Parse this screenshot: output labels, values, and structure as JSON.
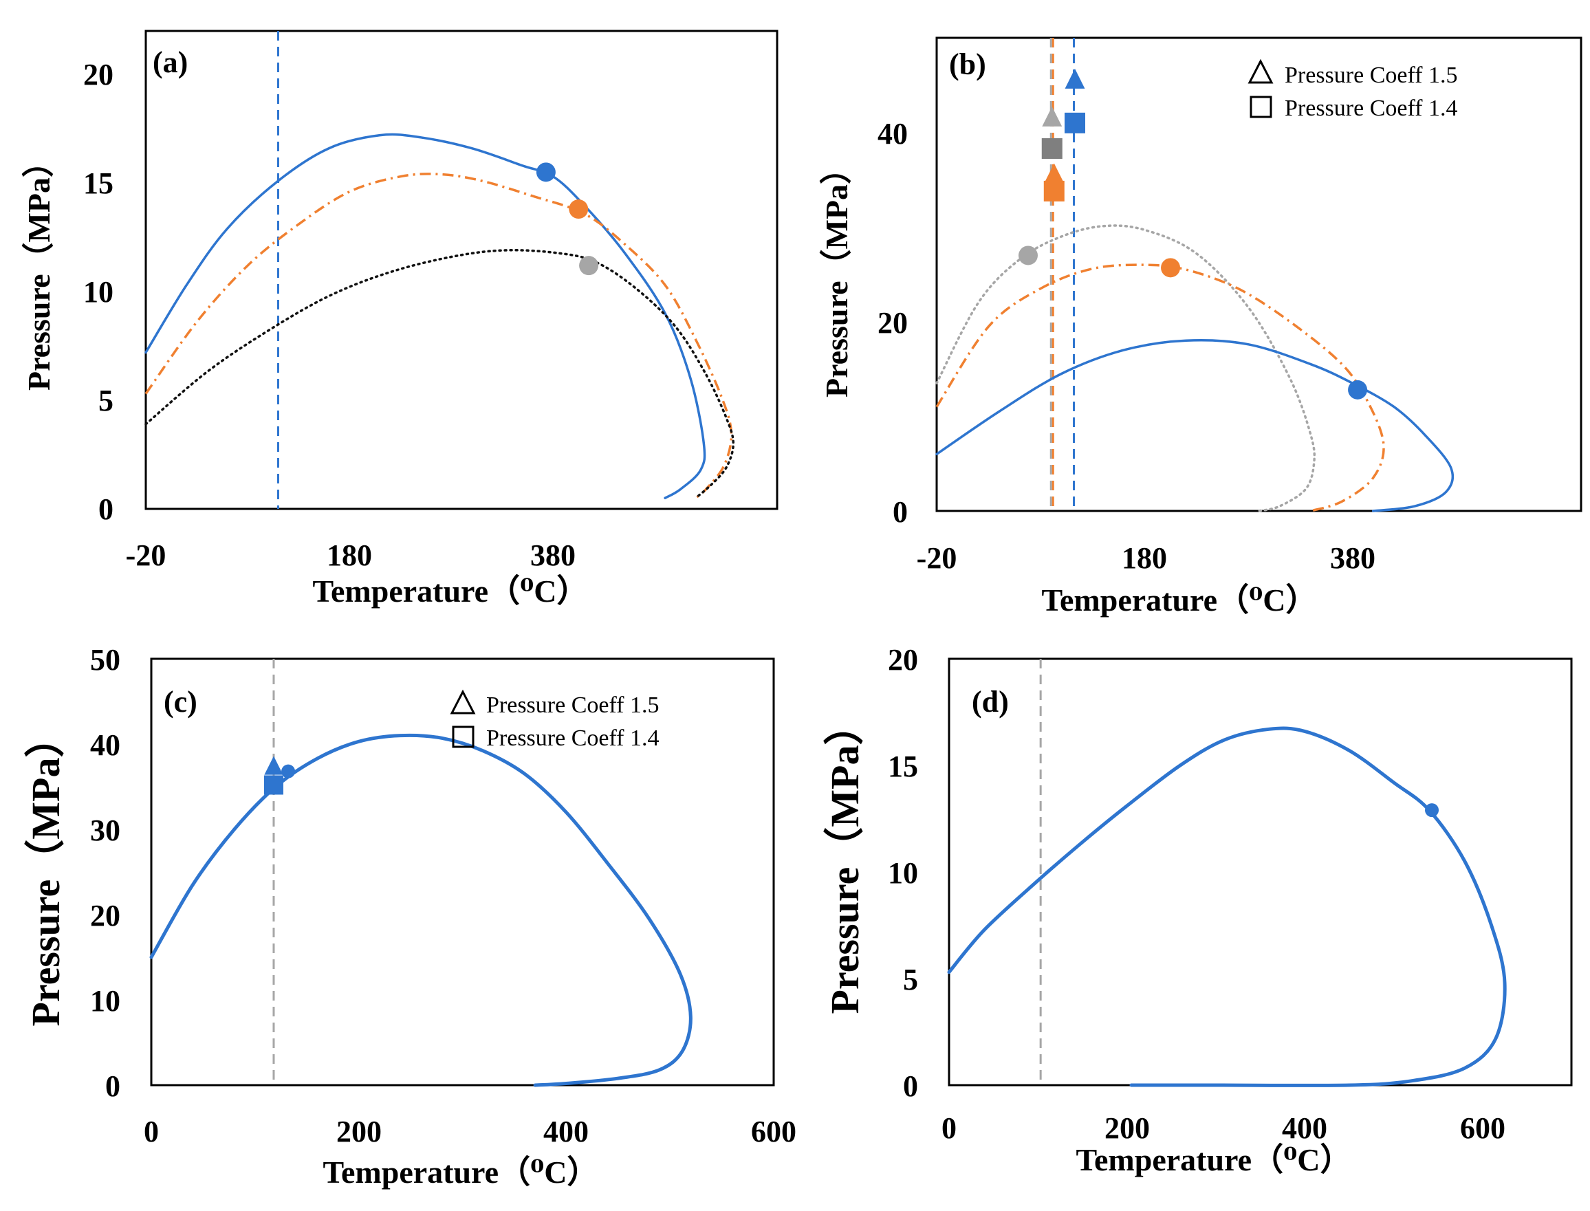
{
  "colors": {
    "blue": "#2E75CF",
    "orange": "#F08030",
    "gray": "#A6A6A6",
    "black": "#111111",
    "darkgray": "#7F7F7F"
  },
  "chart_data": [
    {
      "id": "a",
      "type": "line",
      "label": "(a)",
      "xlabel": "Temperature（⁰C）",
      "ylabel": "Pressure（MPa）",
      "xlim": [
        -20,
        600
      ],
      "ylim": [
        0,
        22
      ],
      "xticks": [
        "-20",
        "180",
        "380"
      ],
      "yticks": [
        "0",
        "5",
        "10",
        "15",
        "20"
      ],
      "vlines": [
        {
          "x": 110,
          "color": "blue"
        }
      ],
      "series": [
        {
          "name": "blue solid",
          "color": "blue",
          "style": "solid",
          "points": [
            [
              -20,
              7.2
            ],
            [
              20,
              10.3
            ],
            [
              60,
              12.9
            ],
            [
              110,
              15.1
            ],
            [
              160,
              16.6
            ],
            [
              210,
              17.2
            ],
            [
              250,
              17.1
            ],
            [
              300,
              16.6
            ],
            [
              350,
              15.8
            ],
            [
              380,
              15.3
            ],
            [
              410,
              14.0
            ],
            [
              450,
              11.8
            ],
            [
              490,
              9.0
            ],
            [
              515,
              6.0
            ],
            [
              528,
              3.0
            ],
            [
              525,
              1.8
            ],
            [
              505,
              0.9
            ],
            [
              490,
              0.5
            ]
          ]
        },
        {
          "name": "orange dash-dot",
          "color": "orange",
          "style": "dashdot",
          "points": [
            [
              -20,
              5.3
            ],
            [
              30,
              8.6
            ],
            [
              80,
              11.2
            ],
            [
              130,
              13.1
            ],
            [
              180,
              14.6
            ],
            [
              230,
              15.3
            ],
            [
              270,
              15.4
            ],
            [
              310,
              15.1
            ],
            [
              360,
              14.4
            ],
            [
              410,
              13.6
            ],
            [
              450,
              12.2
            ],
            [
              490,
              10.3
            ],
            [
              520,
              7.8
            ],
            [
              545,
              5.2
            ],
            [
              555,
              3.5
            ],
            [
              548,
              2.0
            ],
            [
              530,
              0.9
            ],
            [
              520,
              0.5
            ]
          ]
        },
        {
          "name": "black dotted",
          "color": "black",
          "style": "dotted",
          "points": [
            [
              -20,
              3.9
            ],
            [
              40,
              6.3
            ],
            [
              100,
              8.2
            ],
            [
              160,
              9.8
            ],
            [
              220,
              10.9
            ],
            [
              280,
              11.6
            ],
            [
              330,
              11.9
            ],
            [
              380,
              11.8
            ],
            [
              420,
              11.4
            ],
            [
              460,
              10.2
            ],
            [
              500,
              8.4
            ],
            [
              530,
              6.2
            ],
            [
              550,
              4.2
            ],
            [
              557,
              3.0
            ],
            [
              550,
              1.9
            ],
            [
              535,
              1.1
            ],
            [
              520,
              0.5
            ]
          ]
        }
      ],
      "markers": [
        {
          "x": 373,
          "y": 15.5,
          "shape": "circle",
          "color": "blue",
          "size": 14
        },
        {
          "x": 405,
          "y": 13.8,
          "shape": "circle",
          "color": "orange",
          "size": 14
        },
        {
          "x": 415,
          "y": 11.2,
          "shape": "circle",
          "color": "gray",
          "size": 14
        }
      ]
    },
    {
      "id": "b",
      "type": "line",
      "label": "(b)",
      "xlabel": "Temperature（⁰C）",
      "ylabel": "Pressure（MPa）",
      "xlim": [
        -20,
        600
      ],
      "ylim": [
        0,
        50
      ],
      "xticks": [
        "-20",
        "180",
        "380"
      ],
      "yticks": [
        "0",
        "20",
        "40"
      ],
      "vlines": [
        {
          "x": 90,
          "color": "gray"
        },
        {
          "x": 92,
          "color": "orange"
        },
        {
          "x": 112,
          "color": "blue"
        }
      ],
      "legend": [
        {
          "shape": "triangle",
          "text": "Pressure Coeff 1.5"
        },
        {
          "shape": "square",
          "text": "Pressure Coeff 1.4"
        }
      ],
      "series": [
        {
          "name": "gray dotted",
          "color": "gray",
          "style": "dotted",
          "points": [
            [
              -20,
              13.5
            ],
            [
              20,
              22.0
            ],
            [
              60,
              26.6
            ],
            [
              100,
              29.0
            ],
            [
              140,
              30.1
            ],
            [
              180,
              29.7
            ],
            [
              230,
              27.2
            ],
            [
              280,
              21.5
            ],
            [
              320,
              14.0
            ],
            [
              340,
              8.0
            ],
            [
              343,
              5.0
            ],
            [
              335,
              2.3
            ],
            [
              310,
              0.5
            ],
            [
              290,
              0.0
            ]
          ]
        },
        {
          "name": "orange dash-dot",
          "color": "orange",
          "style": "dashdot",
          "points": [
            [
              -20,
              11.0
            ],
            [
              30,
              19.5
            ],
            [
              80,
              23.5
            ],
            [
              130,
              25.6
            ],
            [
              180,
              26.0
            ],
            [
              220,
              25.5
            ],
            [
              270,
              23.5
            ],
            [
              320,
              20.0
            ],
            [
              370,
              15.5
            ],
            [
              395,
              11.5
            ],
            [
              410,
              7.0
            ],
            [
              400,
              3.5
            ],
            [
              370,
              1.0
            ],
            [
              340,
              0.0
            ]
          ]
        },
        {
          "name": "blue solid",
          "color": "blue",
          "style": "solid",
          "points": [
            [
              -20,
              6.0
            ],
            [
              40,
              10.5
            ],
            [
              100,
              14.5
            ],
            [
              160,
              17.0
            ],
            [
              220,
              18.0
            ],
            [
              280,
              17.6
            ],
            [
              340,
              15.5
            ],
            [
              380,
              13.5
            ],
            [
              420,
              11.0
            ],
            [
              450,
              8.0
            ],
            [
              475,
              4.5
            ],
            [
              470,
              2.0
            ],
            [
              440,
              0.5
            ],
            [
              400,
              0.0
            ]
          ]
        }
      ],
      "markers": [
        {
          "x": 68,
          "y": 27.0,
          "shape": "circle",
          "color": "gray",
          "size": 14
        },
        {
          "x": 205,
          "y": 25.7,
          "shape": "circle",
          "color": "orange",
          "size": 14
        },
        {
          "x": 385,
          "y": 12.8,
          "shape": "circle",
          "color": "blue",
          "size": 14
        },
        {
          "x": 91,
          "y": 41.5,
          "shape": "triangle",
          "color": "gray",
          "size": 17
        },
        {
          "x": 91,
          "y": 38.3,
          "shape": "square",
          "color": "darkgray",
          "size": 15
        },
        {
          "x": 93,
          "y": 35.5,
          "shape": "triangle",
          "color": "orange",
          "size": 17
        },
        {
          "x": 93,
          "y": 33.8,
          "shape": "square",
          "color": "orange",
          "size": 15
        },
        {
          "x": 113,
          "y": 45.5,
          "shape": "triangle",
          "color": "blue",
          "size": 17
        },
        {
          "x": 113,
          "y": 41.0,
          "shape": "square",
          "color": "blue",
          "size": 15
        }
      ]
    },
    {
      "id": "c",
      "type": "line",
      "label": "(c)",
      "xlabel": "Temperature（⁰C）",
      "ylabel": "Pressure（MPa）",
      "xlim": [
        0,
        600
      ],
      "ylim": [
        0,
        50
      ],
      "xticks": [
        "0",
        "200",
        "400",
        "600"
      ],
      "yticks": [
        "0",
        "10",
        "20",
        "30",
        "40",
        "50"
      ],
      "vlines": [
        {
          "x": 118,
          "color": "gray"
        }
      ],
      "legend": [
        {
          "shape": "triangle",
          "text": "Pressure Coeff 1.5"
        },
        {
          "shape": "square",
          "text": "Pressure Coeff 1.4"
        }
      ],
      "series": [
        {
          "name": "blue solid",
          "color": "blue",
          "style": "solid",
          "points": [
            [
              0,
              15.0
            ],
            [
              40,
              23.5
            ],
            [
              80,
              30.0
            ],
            [
              120,
              35.0
            ],
            [
              160,
              38.3
            ],
            [
              200,
              40.3
            ],
            [
              240,
              41.0
            ],
            [
              280,
              40.7
            ],
            [
              320,
              39.2
            ],
            [
              360,
              36.5
            ],
            [
              400,
              32.0
            ],
            [
              440,
              26.0
            ],
            [
              480,
              19.5
            ],
            [
              510,
              13.0
            ],
            [
              520,
              8.0
            ],
            [
              512,
              4.0
            ],
            [
              490,
              1.8
            ],
            [
              450,
              0.8
            ],
            [
              400,
              0.2
            ],
            [
              370,
              0.0
            ]
          ]
        }
      ],
      "markers": [
        {
          "x": 132,
          "y": 36.8,
          "shape": "circle",
          "color": "blue",
          "size": 10
        },
        {
          "x": 118,
          "y": 37.3,
          "shape": "triangle",
          "color": "blue",
          "size": 16
        },
        {
          "x": 118,
          "y": 35.2,
          "shape": "square",
          "color": "blue",
          "size": 14
        }
      ]
    },
    {
      "id": "d",
      "type": "line",
      "label": "(d)",
      "xlabel": "Temperature（⁰C）",
      "ylabel": "Pressure（MPa）",
      "xlim": [
        0,
        700
      ],
      "ylim": [
        0,
        20
      ],
      "xticks": [
        "0",
        "200",
        "400",
        "600"
      ],
      "yticks": [
        "0",
        "5",
        "10",
        "15",
        "20"
      ],
      "vlines": [
        {
          "x": 103,
          "color": "gray"
        }
      ],
      "series": [
        {
          "name": "blue solid",
          "color": "blue",
          "style": "solid",
          "points": [
            [
              0,
              5.3
            ],
            [
              40,
              7.3
            ],
            [
              100,
              9.6
            ],
            [
              150,
              11.4
            ],
            [
              200,
              13.1
            ],
            [
              260,
              15.0
            ],
            [
              310,
              16.2
            ],
            [
              360,
              16.7
            ],
            [
              400,
              16.6
            ],
            [
              450,
              15.7
            ],
            [
              500,
              14.2
            ],
            [
              540,
              12.9
            ],
            [
              580,
              10.5
            ],
            [
              610,
              7.5
            ],
            [
              625,
              4.8
            ],
            [
              615,
              2.2
            ],
            [
              580,
              0.8
            ],
            [
              520,
              0.2
            ],
            [
              450,
              0.0
            ],
            [
              300,
              0.0
            ],
            [
              205,
              0.0
            ]
          ]
        }
      ],
      "markers": [
        {
          "x": 543,
          "y": 12.9,
          "shape": "circle",
          "color": "blue",
          "size": 10
        }
      ]
    }
  ]
}
